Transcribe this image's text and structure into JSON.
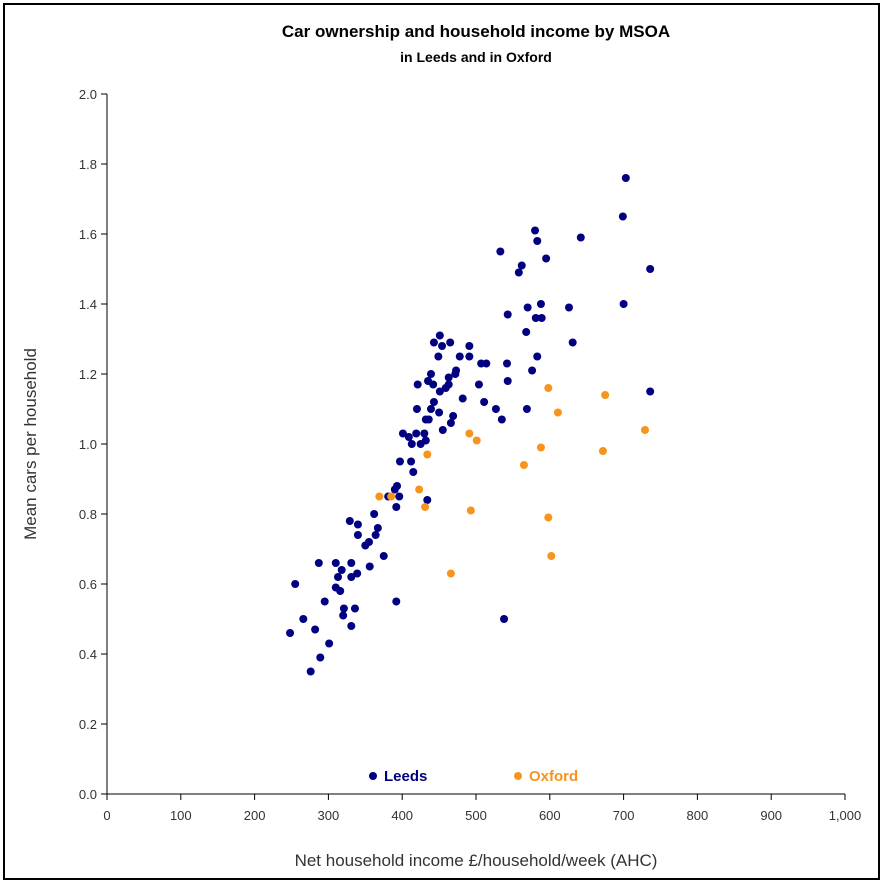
{
  "chart_data": {
    "type": "scatter",
    "title": "Car ownership and household income by MSOA",
    "subtitle": "in Leeds and in Oxford",
    "xlabel": "Net household income £/household/week (AHC)",
    "ylabel": "Mean cars per household",
    "xlim": [
      0,
      1000
    ],
    "ylim": [
      0,
      2.0
    ],
    "xticks": [
      "0",
      "100",
      "200",
      "300",
      "400",
      "500",
      "600",
      "700",
      "800",
      "900",
      "1,000"
    ],
    "yticks": [
      "0.0",
      "0.2",
      "0.4",
      "0.6",
      "0.8",
      "1.0",
      "1.2",
      "1.4",
      "1.6",
      "1.8",
      "2.0"
    ],
    "grid": false,
    "legend_position": "bottom-center",
    "series": [
      {
        "name": "Leeds",
        "color": "#000080",
        "points": [
          [
            703,
            1.76
          ],
          [
            699,
            1.65
          ],
          [
            580,
            1.61
          ],
          [
            642,
            1.59
          ],
          [
            583,
            1.58
          ],
          [
            533,
            1.55
          ],
          [
            595,
            1.53
          ],
          [
            562,
            1.51
          ],
          [
            558,
            1.49
          ],
          [
            736,
            1.5
          ],
          [
            588,
            1.4
          ],
          [
            570,
            1.39
          ],
          [
            626,
            1.39
          ],
          [
            700,
            1.4
          ],
          [
            581,
            1.36
          ],
          [
            589,
            1.36
          ],
          [
            543,
            1.37
          ],
          [
            568,
            1.32
          ],
          [
            631,
            1.29
          ],
          [
            576,
            1.21
          ],
          [
            583,
            1.25
          ],
          [
            542,
            1.23
          ],
          [
            569,
            1.1
          ],
          [
            543,
            1.18
          ],
          [
            736,
            1.15
          ],
          [
            538,
            0.5
          ],
          [
            451,
            1.31
          ],
          [
            443,
            1.29
          ],
          [
            454,
            1.28
          ],
          [
            465,
            1.29
          ],
          [
            491,
            1.28
          ],
          [
            449,
            1.25
          ],
          [
            478,
            1.25
          ],
          [
            491,
            1.25
          ],
          [
            507,
            1.23
          ],
          [
            514,
            1.23
          ],
          [
            439,
            1.2
          ],
          [
            421,
            1.17
          ],
          [
            435,
            1.18
          ],
          [
            442,
            1.17
          ],
          [
            463,
            1.19
          ],
          [
            472,
            1.2
          ],
          [
            473,
            1.21
          ],
          [
            463,
            1.17
          ],
          [
            459,
            1.16
          ],
          [
            451,
            1.15
          ],
          [
            504,
            1.17
          ],
          [
            443,
            1.12
          ],
          [
            482,
            1.13
          ],
          [
            511,
            1.12
          ],
          [
            420,
            1.1
          ],
          [
            439,
            1.1
          ],
          [
            450,
            1.09
          ],
          [
            527,
            1.1
          ],
          [
            535,
            1.07
          ],
          [
            432,
            1.07
          ],
          [
            436,
            1.07
          ],
          [
            469,
            1.08
          ],
          [
            466,
            1.06
          ],
          [
            455,
            1.04
          ],
          [
            401,
            1.03
          ],
          [
            409,
            1.02
          ],
          [
            419,
            1.03
          ],
          [
            430,
            1.03
          ],
          [
            432,
            1.01
          ],
          [
            413,
            1.0
          ],
          [
            425,
            1.0
          ],
          [
            397,
            0.95
          ],
          [
            412,
            0.95
          ],
          [
            415,
            0.92
          ],
          [
            390,
            0.87
          ],
          [
            393,
            0.88
          ],
          [
            381,
            0.85
          ],
          [
            396,
            0.85
          ],
          [
            434,
            0.84
          ],
          [
            392,
            0.82
          ],
          [
            362,
            0.8
          ],
          [
            329,
            0.78
          ],
          [
            340,
            0.77
          ],
          [
            340,
            0.74
          ],
          [
            367,
            0.76
          ],
          [
            364,
            0.74
          ],
          [
            350,
            0.71
          ],
          [
            355,
            0.72
          ],
          [
            375,
            0.68
          ],
          [
            287,
            0.66
          ],
          [
            310,
            0.66
          ],
          [
            331,
            0.66
          ],
          [
            318,
            0.64
          ],
          [
            313,
            0.62
          ],
          [
            331,
            0.62
          ],
          [
            339,
            0.63
          ],
          [
            356,
            0.65
          ],
          [
            255,
            0.6
          ],
          [
            310,
            0.59
          ],
          [
            316,
            0.58
          ],
          [
            295,
            0.55
          ],
          [
            321,
            0.53
          ],
          [
            336,
            0.53
          ],
          [
            392,
            0.55
          ],
          [
            266,
            0.5
          ],
          [
            320,
            0.51
          ],
          [
            282,
            0.47
          ],
          [
            248,
            0.46
          ],
          [
            331,
            0.48
          ],
          [
            301,
            0.43
          ],
          [
            289,
            0.39
          ],
          [
            276,
            0.35
          ]
        ]
      },
      {
        "name": "Oxford",
        "color": "#F7941D",
        "points": [
          [
            491,
            1.03
          ],
          [
            501,
            1.01
          ],
          [
            434,
            0.97
          ],
          [
            423,
            0.87
          ],
          [
            369,
            0.85
          ],
          [
            385,
            0.85
          ],
          [
            431,
            0.82
          ],
          [
            493,
            0.81
          ],
          [
            598,
            1.16
          ],
          [
            675,
            1.14
          ],
          [
            611,
            1.09
          ],
          [
            729,
            1.04
          ],
          [
            672,
            0.98
          ],
          [
            588,
            0.99
          ],
          [
            565,
            0.94
          ],
          [
            598,
            0.79
          ],
          [
            602,
            0.68
          ],
          [
            466,
            0.63
          ]
        ]
      }
    ]
  }
}
